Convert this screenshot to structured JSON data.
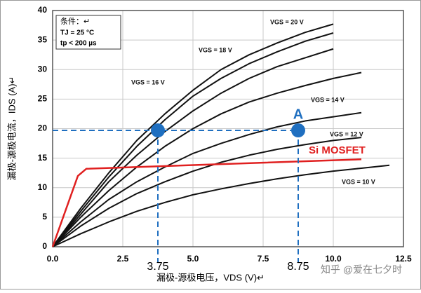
{
  "chart_data": {
    "type": "line",
    "xlabel": "漏极-源极电压，VDS (V)↵",
    "ylabel": "漏极-源极电流，IDS (A)↵",
    "conditions": [
      "条件：↵",
      "TJ = 25 °C",
      "tp < 200 µs"
    ],
    "watermark": "知乎 @爱在七夕时",
    "x": [
      0,
      1,
      2,
      3,
      4,
      5,
      6,
      7,
      8,
      9,
      10,
      11,
      12
    ],
    "xlim": [
      0,
      12.5
    ],
    "ylim": [
      0,
      40
    ],
    "xticks": [
      {
        "value": 0,
        "label": "0.0"
      },
      {
        "value": 2.5,
        "label": "2.5"
      },
      {
        "value": 5,
        "label": "5.0"
      },
      {
        "value": 7.5,
        "label": "7.5"
      },
      {
        "value": 10,
        "label": "10.0"
      },
      {
        "value": 12.5,
        "label": "12.5"
      }
    ],
    "yticks": [
      0,
      5,
      10,
      15,
      20,
      25,
      30,
      35,
      40
    ],
    "grid": true,
    "series": [
      {
        "name": "VGS = 20 V",
        "color": "#111111",
        "values": [
          0,
          6.5,
          12.5,
          18,
          22.5,
          26.5,
          30,
          32.5,
          34.5,
          36.3,
          37.7,
          null,
          null
        ]
      },
      {
        "color": "#111111",
        "values": [
          0,
          6,
          11.8,
          17,
          21.5,
          25.5,
          28.5,
          31,
          33,
          34.8,
          36.2,
          null,
          null
        ]
      },
      {
        "name": "VGS = 18 V",
        "color": "#111111",
        "values": [
          0,
          5.5,
          11,
          15.5,
          19.5,
          23,
          26,
          28.5,
          30.5,
          32,
          33.5,
          null,
          null
        ]
      },
      {
        "name": "VGS = 16 V",
        "color": "#111111",
        "values": [
          0,
          5,
          9.5,
          13.5,
          17,
          20,
          22.5,
          24.5,
          26,
          27.3,
          28.5,
          29.5,
          null
        ]
      },
      {
        "name": "VGS = 14 V",
        "color": "#111111",
        "values": [
          0,
          4.2,
          8,
          11,
          13.5,
          15.8,
          17.5,
          19,
          20.3,
          21.3,
          22,
          22.7,
          null
        ]
      },
      {
        "name": "VGS = 12 V",
        "color": "#111111",
        "values": [
          0,
          3.5,
          6.5,
          9,
          11,
          12.8,
          14.3,
          15.5,
          16.5,
          17.3,
          18,
          18.5,
          null
        ]
      },
      {
        "name": "VGS = 10 V",
        "color": "#111111",
        "values": [
          0,
          2.2,
          4.2,
          6,
          7.5,
          8.8,
          9.8,
          10.7,
          11.5,
          12.2,
          12.8,
          13.3,
          13.8
        ]
      },
      {
        "name": "Si MOSFET",
        "color": "#e02020",
        "x": [
          0,
          0.9,
          1.2,
          11
        ],
        "values": [
          0,
          12,
          13.2,
          14.8
        ]
      }
    ],
    "markers": [
      {
        "x": 3.75,
        "y": 19.7,
        "color": "#1f6fc0"
      },
      {
        "x": 8.75,
        "y": 19.7,
        "label": "A",
        "color": "#1f6fc0"
      }
    ]
  }
}
